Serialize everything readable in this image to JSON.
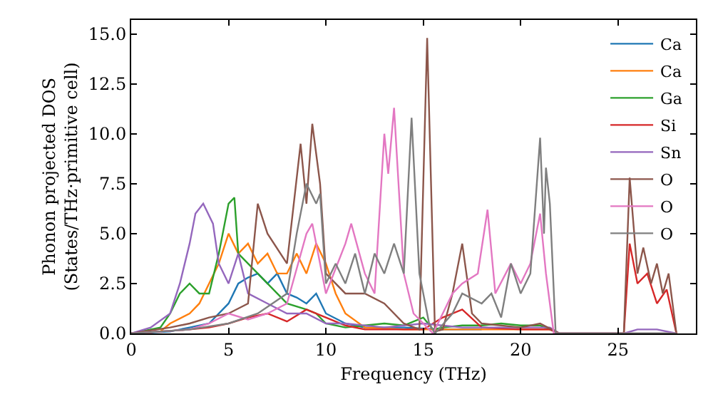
{
  "chart_data": {
    "type": "line",
    "xlabel": "Frequency (THz)",
    "ylabel": "Phonon projected DOS\n(States/THz·primitive cell)",
    "xlim": [
      0,
      29
    ],
    "ylim": [
      0,
      15.7
    ],
    "xticks": [
      0,
      5,
      10,
      15,
      20,
      25
    ],
    "yticks": [
      {
        "value": 0,
        "label": "0.0"
      },
      {
        "value": 2.5,
        "label": "2.5"
      },
      {
        "value": 5,
        "label": "5.0"
      },
      {
        "value": 7.5,
        "label": "7.5"
      },
      {
        "value": 10,
        "label": "10.0"
      },
      {
        "value": 12.5,
        "label": "12.5"
      },
      {
        "value": 15,
        "label": "15.0"
      }
    ],
    "legend": "top right",
    "marker": "none",
    "line_style": "solid",
    "series": [
      {
        "name": "Ca",
        "color": "#1f77b4",
        "x": [
          0,
          2,
          3,
          4,
          5,
          5.5,
          6,
          6.5,
          7,
          7.5,
          8,
          8.5,
          9,
          9.5,
          10,
          11,
          12,
          14,
          16,
          18
        ],
        "values": [
          0,
          0.1,
          0.3,
          0.5,
          1.5,
          2.5,
          2.8,
          3.0,
          2.5,
          3.0,
          2.0,
          1.8,
          1.5,
          2.0,
          1.0,
          0.5,
          0.3,
          0.3,
          0.2,
          0.2
        ]
      },
      {
        "name": "Ca",
        "color": "#ff7f0e",
        "x": [
          0,
          1.5,
          2,
          3,
          3.5,
          4,
          4.5,
          5,
          5.5,
          6,
          6.5,
          7,
          7.5,
          8,
          8.5,
          9,
          9.5,
          10,
          10.5,
          11,
          12,
          14,
          16,
          18,
          20,
          21.5
        ],
        "values": [
          0,
          0.1,
          0.5,
          1.0,
          1.5,
          2.5,
          3.5,
          5.0,
          4.0,
          4.5,
          3.5,
          4.0,
          3.0,
          3.0,
          4.0,
          3.0,
          4.5,
          3.5,
          2.0,
          1.0,
          0.3,
          0.2,
          0.2,
          0.2,
          0.2,
          0.2
        ]
      },
      {
        "name": "Ga",
        "color": "#2ca02c",
        "x": [
          0,
          1.5,
          2,
          2.5,
          3,
          3.5,
          4,
          4.5,
          5,
          5.3,
          5.5,
          6,
          6.5,
          7,
          7.5,
          8,
          9,
          9.5,
          10,
          11,
          12,
          13,
          14,
          15,
          15.5,
          16,
          17,
          18,
          19,
          20,
          21,
          21.5,
          22,
          28
        ],
        "values": [
          0,
          0.3,
          1.0,
          2.0,
          2.5,
          2.0,
          2.0,
          4.0,
          6.5,
          6.8,
          4.0,
          3.5,
          3.0,
          2.5,
          2.0,
          1.5,
          1.2,
          1.0,
          0.5,
          0.3,
          0.4,
          0.5,
          0.4,
          0.8,
          0.2,
          0.3,
          0.4,
          0.4,
          0.5,
          0.4,
          0.4,
          0.2,
          0,
          0
        ]
      },
      {
        "name": "Si",
        "color": "#d62728",
        "x": [
          0,
          3,
          4,
          5,
          6,
          7,
          8,
          9,
          10,
          11,
          12,
          14,
          15,
          16,
          17,
          18,
          20,
          21.5,
          22,
          25.3,
          25.6,
          26,
          26.5,
          27,
          27.5,
          28
        ],
        "values": [
          0,
          0.2,
          0.3,
          0.5,
          0.8,
          1.0,
          0.6,
          1.2,
          0.8,
          0.4,
          0.2,
          0.2,
          0.2,
          0.8,
          1.2,
          0.3,
          0.2,
          0.2,
          0,
          0,
          4.5,
          2.5,
          3.0,
          1.5,
          2.2,
          0
        ]
      },
      {
        "name": "Sn",
        "color": "#9467bd",
        "x": [
          0,
          1,
          2,
          2.5,
          3,
          3.3,
          3.7,
          4.2,
          4.5,
          5,
          5.5,
          6,
          7,
          8,
          9,
          10,
          11,
          13,
          15,
          17,
          19,
          21,
          21.5,
          22,
          25.3,
          26,
          27,
          28
        ],
        "values": [
          0,
          0.3,
          1.0,
          2.5,
          4.5,
          6.0,
          6.5,
          5.5,
          3.5,
          2.5,
          4.0,
          2.0,
          1.5,
          1.0,
          1.0,
          0.5,
          0.5,
          0.3,
          0.5,
          0.3,
          0.3,
          0.3,
          0.3,
          0,
          0,
          0.2,
          0.2,
          0
        ]
      },
      {
        "name": "O",
        "color": "#8c564b",
        "x": [
          0,
          2,
          3,
          4,
          5,
          6,
          6.5,
          7,
          8,
          8.7,
          9,
          9.3,
          9.7,
          10,
          11,
          12,
          13,
          14,
          14.8,
          15.2,
          15.6,
          16,
          16.5,
          17,
          17.5,
          18,
          20,
          21,
          22,
          25.3,
          25.6,
          26,
          26.3,
          26.7,
          27,
          27.3,
          27.6,
          28
        ],
        "values": [
          0,
          0.3,
          0.5,
          0.8,
          1.0,
          1.5,
          6.5,
          5.0,
          3.5,
          9.5,
          6.5,
          10.5,
          7.5,
          3.0,
          2.0,
          2.0,
          1.5,
          0.5,
          0.2,
          14.8,
          0.1,
          0.2,
          2.0,
          4.5,
          1.0,
          0.5,
          0.3,
          0.5,
          0,
          0,
          7.8,
          3.0,
          4.3,
          2.5,
          3.5,
          2.0,
          3.0,
          0
        ]
      },
      {
        "name": "O",
        "color": "#e377c2",
        "x": [
          0,
          3,
          4,
          5,
          6,
          7,
          8,
          9,
          9.3,
          9.6,
          10,
          11,
          11.3,
          12,
          12.5,
          13,
          13.2,
          13.5,
          14,
          14.5,
          15,
          15.5,
          16,
          16.5,
          17,
          17.8,
          18.3,
          18.7,
          19.5,
          20,
          20.5,
          21,
          21.3,
          21.7,
          28
        ],
        "values": [
          0,
          0.2,
          0.5,
          1.0,
          0.7,
          1.0,
          1.5,
          5.0,
          5.5,
          4.0,
          2.0,
          4.5,
          5.5,
          3.0,
          2.0,
          10.0,
          8.0,
          11.3,
          3.0,
          1.0,
          0.5,
          0,
          1.0,
          2.0,
          2.5,
          3.0,
          6.2,
          2.0,
          3.5,
          2.5,
          3.5,
          6.0,
          3.0,
          0,
          0
        ]
      },
      {
        "name": "O",
        "color": "#7f7f7f",
        "x": [
          0,
          3,
          5,
          6.5,
          8,
          8.5,
          9,
          9.5,
          9.7,
          10,
          10.5,
          11,
          11.5,
          12,
          12.5,
          13,
          13.5,
          14,
          14.4,
          14.8,
          15.3,
          15.6,
          16.5,
          17,
          18,
          18.5,
          19,
          19.5,
          20,
          20.5,
          21,
          21.2,
          21.3,
          21.5,
          21.8,
          28
        ],
        "values": [
          0,
          0.2,
          0.5,
          1.0,
          2.0,
          5.0,
          7.5,
          6.5,
          7.0,
          2.5,
          3.5,
          2.5,
          4.0,
          2.0,
          4.0,
          3.0,
          4.5,
          3.0,
          10.8,
          3.0,
          0.5,
          0,
          1.0,
          2.0,
          1.5,
          2.0,
          0.8,
          3.5,
          2.0,
          3.0,
          9.8,
          5.0,
          8.3,
          6.5,
          0,
          0
        ]
      }
    ]
  }
}
